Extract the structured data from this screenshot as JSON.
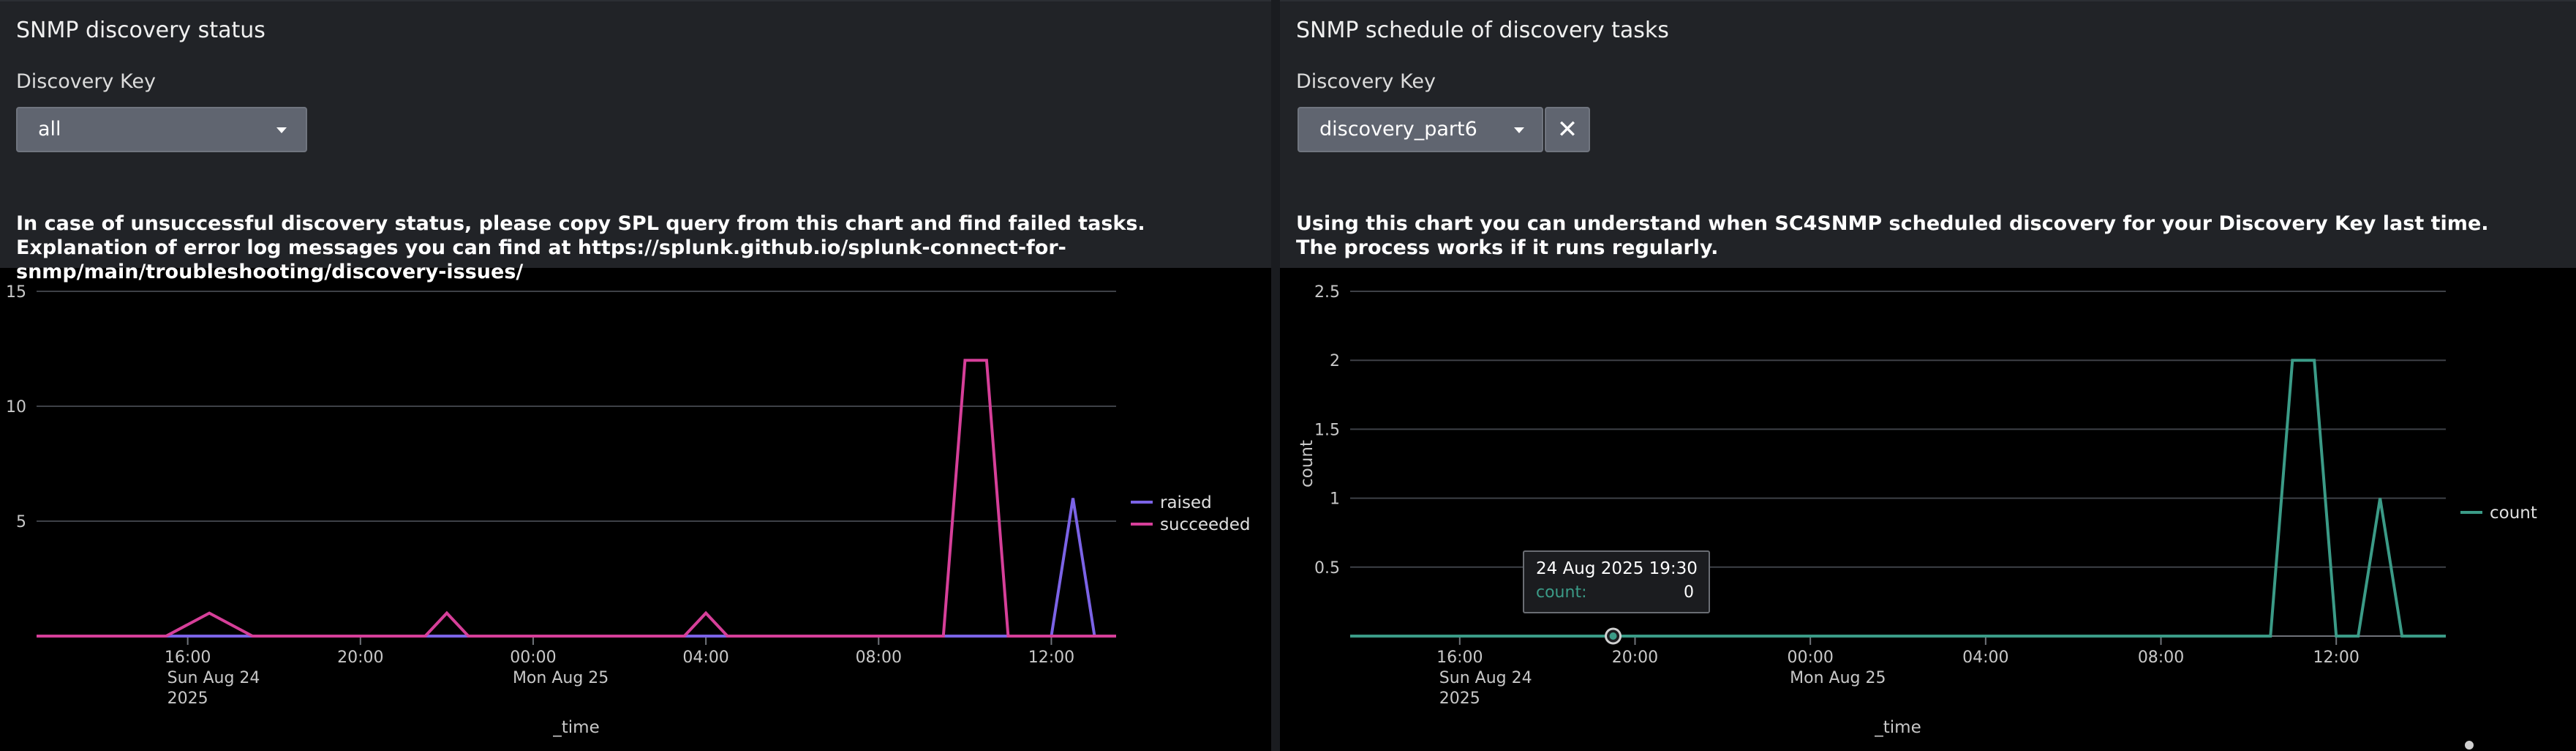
{
  "left_panel": {
    "title": "SNMP discovery status",
    "input_label": "Discovery Key",
    "dropdown_value": "all",
    "description": "In case of unsuccessful discovery status, please copy SPL query from this chart and find failed tasks. Explanation of error log messages you can find at https://splunk.github.io/splunk-connect-for-snmp/main/troubleshooting/discovery-issues/"
  },
  "right_panel": {
    "title": "SNMP schedule of discovery tasks",
    "input_label": "Discovery Key",
    "dropdown_value": "discovery_part6",
    "clear_label": "✕",
    "description": "Using this chart you can understand when SC4SNMP scheduled discovery for your Discovery Key last time. The process works if it runs regularly.",
    "tooltip": {
      "date": "24 Aug 2025 19:30",
      "key": "count:",
      "value": "0"
    }
  },
  "chart_data": [
    {
      "type": "line",
      "xlabel": "_time",
      "ylabel": "",
      "ylim": [
        0,
        15
      ],
      "yticks": [
        "5",
        "10",
        "15"
      ],
      "ytick_values": [
        5,
        10,
        15
      ],
      "xlim": [
        12.5,
        37.5
      ],
      "xticks": [
        {
          "t": 16,
          "label": "16:00",
          "sub": [
            "Sun Aug 24",
            "2025"
          ]
        },
        {
          "t": 20,
          "label": "20:00",
          "sub": []
        },
        {
          "t": 24,
          "label": "00:00",
          "sub": [
            "Mon Aug 25"
          ]
        },
        {
          "t": 28,
          "label": "04:00",
          "sub": []
        },
        {
          "t": 32,
          "label": "08:00",
          "sub": []
        },
        {
          "t": 36,
          "label": "12:00",
          "sub": []
        }
      ],
      "legend_position": "right",
      "series": [
        {
          "name": "raised",
          "color": "#7b63e6",
          "x": [
            12.5,
            36.0,
            36.5,
            37.0,
            37.5
          ],
          "y": [
            0,
            0,
            6,
            0,
            0
          ]
        },
        {
          "name": "succeeded",
          "color": "#d63f99",
          "x": [
            12.5,
            15.5,
            16.5,
            17.5,
            21.5,
            22.0,
            22.5,
            27.5,
            28.0,
            28.5,
            33.5,
            34.0,
            34.5,
            35.0,
            37.5
          ],
          "y": [
            0,
            0,
            1,
            0,
            0,
            1,
            0,
            0,
            1,
            0,
            0,
            12,
            12,
            0,
            0
          ]
        }
      ]
    },
    {
      "type": "line",
      "xlabel": "_time",
      "ylabel": "count",
      "ylim": [
        0,
        2.5
      ],
      "yticks": [
        "0.5",
        "1",
        "1.5",
        "2",
        "2.5"
      ],
      "ytick_values": [
        0.5,
        1,
        1.5,
        2,
        2.5
      ],
      "xlim": [
        13.5,
        38.5
      ],
      "xticks": [
        {
          "t": 16,
          "label": "16:00",
          "sub": [
            "Sun Aug 24",
            "2025"
          ]
        },
        {
          "t": 20,
          "label": "20:00",
          "sub": []
        },
        {
          "t": 24,
          "label": "00:00",
          "sub": [
            "Mon Aug 25"
          ]
        },
        {
          "t": 28,
          "label": "04:00",
          "sub": []
        },
        {
          "t": 32,
          "label": "08:00",
          "sub": []
        },
        {
          "t": 36,
          "label": "12:00",
          "sub": []
        }
      ],
      "legend_position": "right",
      "highlight_x": 19.5,
      "series": [
        {
          "name": "count",
          "color": "#3b9b87",
          "x": [
            13.5,
            34.5,
            35.0,
            35.5,
            36.0,
            36.5,
            37.0,
            37.5,
            38.0,
            38.5
          ],
          "y": [
            0,
            0,
            2,
            2,
            0,
            0,
            1,
            0,
            0,
            0
          ]
        }
      ]
    }
  ]
}
